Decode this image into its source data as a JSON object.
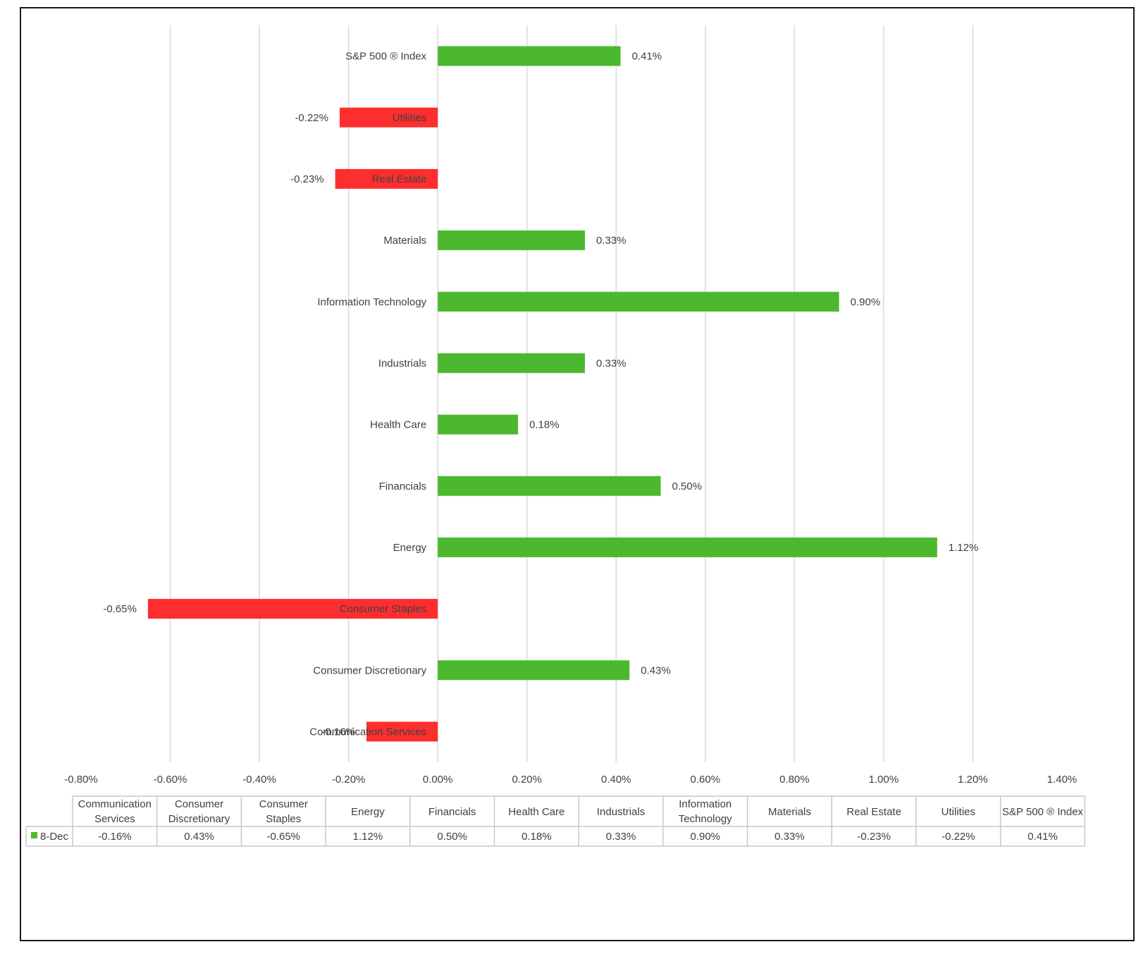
{
  "chart_data": {
    "type": "bar",
    "orientation": "horizontal",
    "categories": [
      "Communication Services",
      "Consumer Discretionary",
      "Consumer Staples",
      "Energy",
      "Financials",
      "Health Care",
      "Industrials",
      "Information Technology",
      "Materials",
      "Real Estate",
      "Utilities",
      "S&P 500 ® Index"
    ],
    "table_headers": [
      [
        "Communication",
        "Services"
      ],
      [
        "Consumer",
        "Discretionary"
      ],
      [
        "Consumer",
        "Staples"
      ],
      [
        "Energy"
      ],
      [
        "Financials"
      ],
      [
        "Health Care"
      ],
      [
        "Industrials"
      ],
      [
        "Information",
        "Technology"
      ],
      [
        "Materials"
      ],
      [
        "Real Estate"
      ],
      [
        "Utilities"
      ],
      [
        "S&P 500 ® Index"
      ]
    ],
    "series": [
      {
        "name": "8-Dec",
        "values": [
          -0.16,
          0.43,
          -0.65,
          1.12,
          0.5,
          0.18,
          0.33,
          0.9,
          0.33,
          -0.23,
          -0.22,
          0.41
        ],
        "labels": [
          "-0.16%",
          "0.43%",
          "-0.65%",
          "1.12%",
          "0.50%",
          "0.18%",
          "0.33%",
          "0.90%",
          "0.33%",
          "-0.23%",
          "-0.22%",
          "0.41%"
        ]
      }
    ],
    "x_ticks": [
      -0.8,
      -0.6,
      -0.4,
      -0.2,
      0.0,
      0.2,
      0.4,
      0.6,
      0.8,
      1.0,
      1.2,
      1.4
    ],
    "x_tick_labels": [
      "-0.80%",
      "-0.60%",
      "-0.40%",
      "-0.20%",
      "0.00%",
      "0.20%",
      "0.40%",
      "0.60%",
      "0.80%",
      "1.00%",
      "1.20%",
      "1.40%"
    ],
    "xlim": [
      -0.8,
      1.4
    ],
    "grid": "vertical",
    "legend": "data-table",
    "colors": {
      "positive": "#4cb82f",
      "negative": "#ff2e2e",
      "legend_key": "#4cb82f",
      "grid": "#d9d9d9",
      "table_border": "#c8c8c8",
      "text": "#404040"
    }
  }
}
